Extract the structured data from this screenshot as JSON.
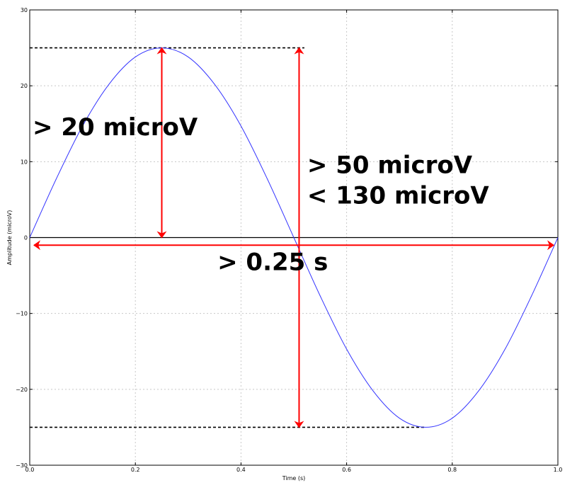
{
  "chart_data": {
    "type": "line",
    "title": "",
    "xlabel": "Time (s)",
    "ylabel": "Amplitude (microV)",
    "xlim": [
      0.0,
      1.0
    ],
    "ylim": [
      -30,
      30
    ],
    "grid": true,
    "x_ticks": [
      0.0,
      0.2,
      0.4,
      0.6,
      0.8,
      1.0
    ],
    "x_tick_labels": [
      "0.0",
      "0.2",
      "0.4",
      "0.6",
      "0.8",
      "1.0"
    ],
    "y_ticks": [
      -30,
      -20,
      -10,
      0,
      10,
      20,
      30
    ],
    "y_tick_labels": [
      "−30",
      "−20",
      "−10",
      "0",
      "10",
      "20",
      "30"
    ],
    "series": [
      {
        "color": "#3333ff",
        "x": [
          0.0,
          0.05,
          0.1,
          0.15,
          0.2,
          0.25,
          0.3,
          0.35,
          0.4,
          0.45,
          0.5,
          0.55,
          0.6,
          0.65,
          0.7,
          0.75,
          0.8,
          0.85,
          0.9,
          0.95,
          1.0
        ],
        "y": [
          0.0,
          7.7,
          14.7,
          20.2,
          23.8,
          25.0,
          23.8,
          20.2,
          14.7,
          7.7,
          0.0,
          -7.7,
          -14.7,
          -20.2,
          -23.8,
          -25.0,
          -23.8,
          -20.2,
          -14.7,
          -7.7,
          0.0
        ]
      }
    ],
    "reference_lines": [
      {
        "kind": "hline",
        "y": 0,
        "color": "#000000",
        "style": "solid"
      },
      {
        "kind": "hline",
        "y": 25,
        "x_from": 0.0,
        "x_to": 0.52,
        "color": "#000000",
        "style": "dashed"
      },
      {
        "kind": "hline",
        "y": -25,
        "x_from": 0.0,
        "x_to": 0.75,
        "color": "#000000",
        "style": "dashed"
      }
    ],
    "arrows": [
      {
        "orientation": "vertical",
        "x": 0.25,
        "from": 0,
        "to": 25,
        "color": "#ff0000"
      },
      {
        "orientation": "vertical",
        "x": 0.51,
        "from": -25,
        "to": 25,
        "color": "#ff0000"
      },
      {
        "orientation": "horizontal",
        "y": -1,
        "from": 0.0,
        "to": 1.0,
        "color": "#ff0000"
      }
    ],
    "annotations": [
      {
        "text": "> 20 microV",
        "x": 0.0,
        "y": 13.5
      },
      {
        "text": "> 50 microV",
        "x": 0.52,
        "y": 8.5
      },
      {
        "text": "< 130 microV",
        "x": 0.52,
        "y": 4.5
      },
      {
        "text": "> 0.25 s",
        "x": 0.35,
        "y": -4.3
      }
    ]
  }
}
